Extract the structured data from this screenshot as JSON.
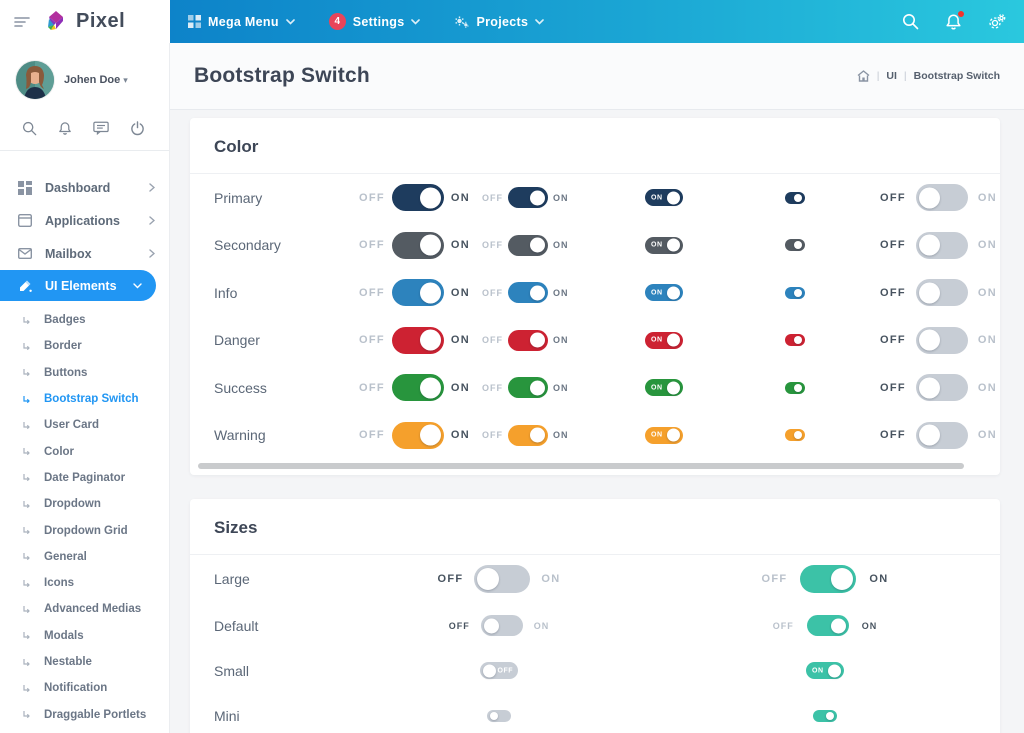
{
  "topbar": {
    "brand": "Pixel",
    "nav": [
      {
        "label": "Mega Menu",
        "icon": "grid-icon"
      },
      {
        "label": "Settings",
        "badge": "4"
      },
      {
        "label": "Projects",
        "icon": "cogs-icon"
      }
    ]
  },
  "sidebar": {
    "user": {
      "name": "Johen Doe"
    },
    "menu": [
      {
        "label": "Dashboard"
      },
      {
        "label": "Applications"
      },
      {
        "label": "Mailbox"
      },
      {
        "label": "UI Elements",
        "active": true
      }
    ],
    "submenu": [
      "Badges",
      "Border",
      "Buttons",
      "Bootstrap Switch",
      "User Card",
      "Color",
      "Date Paginator",
      "Dropdown",
      "Dropdown Grid",
      "General",
      "Icons",
      "Advanced Medias",
      "Modals",
      "Nestable",
      "Notification",
      "Draggable Portlets"
    ],
    "active_submenu": "Bootstrap Switch"
  },
  "page": {
    "title": "Bootstrap Switch",
    "breadcrumb": {
      "items": [
        "UI",
        "Bootstrap Switch"
      ]
    }
  },
  "cards": {
    "color": {
      "title": "Color",
      "off_label": "OFF",
      "on_label": "ON",
      "rows": [
        {
          "label": "Primary",
          "color": "#1e3c5e"
        },
        {
          "label": "Secondary",
          "color": "#545b62"
        },
        {
          "label": "Info",
          "color": "#2d83bd"
        },
        {
          "label": "Danger",
          "color": "#cd2232"
        },
        {
          "label": "Success",
          "color": "#28953d"
        },
        {
          "label": "Warning",
          "color": "#f5a02c"
        }
      ],
      "disabled_color": "#c7cdd5"
    },
    "sizes": {
      "title": "Sizes",
      "off_label": "OFF",
      "on_label": "ON",
      "accent": "#3cc2a7",
      "off_color": "#c7cdd5",
      "rows": [
        {
          "label": "Large",
          "size": "xl"
        },
        {
          "label": "Default",
          "size": "dmd"
        },
        {
          "label": "Small",
          "size": "sm"
        },
        {
          "label": "Mini",
          "size": "smini"
        }
      ]
    }
  }
}
